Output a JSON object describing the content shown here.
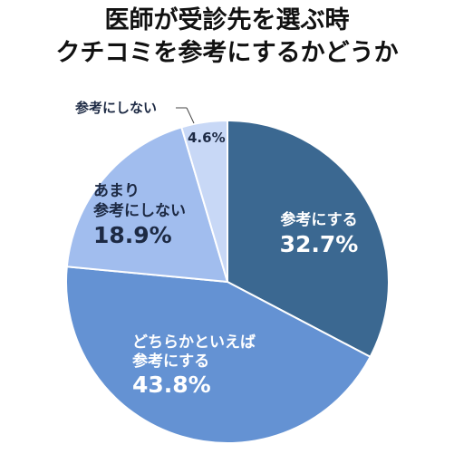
{
  "title_lines": [
    "医師が受診先を選ぶ時",
    "クチコミを参考にするかどうか"
  ],
  "chart_data": {
    "type": "pie",
    "title": "医師が受診先を選ぶ時 クチコミを参考にするかどうか",
    "slices": [
      {
        "label_lines": [
          "参考にする"
        ],
        "value": 32.7,
        "value_label": "32.7%",
        "color": "#3b6891"
      },
      {
        "label_lines": [
          "どちらかといえば",
          "参考にする"
        ],
        "value": 43.8,
        "value_label": "43.8%",
        "color": "#6492d3"
      },
      {
        "label_lines": [
          "あまり",
          "参考にしない"
        ],
        "value": 18.9,
        "value_label": "18.9%",
        "color": "#a1bdee"
      },
      {
        "label_lines": [
          "参考にしない"
        ],
        "value": 4.6,
        "value_label": "4.6%",
        "color": "#c8d8f6"
      }
    ]
  }
}
